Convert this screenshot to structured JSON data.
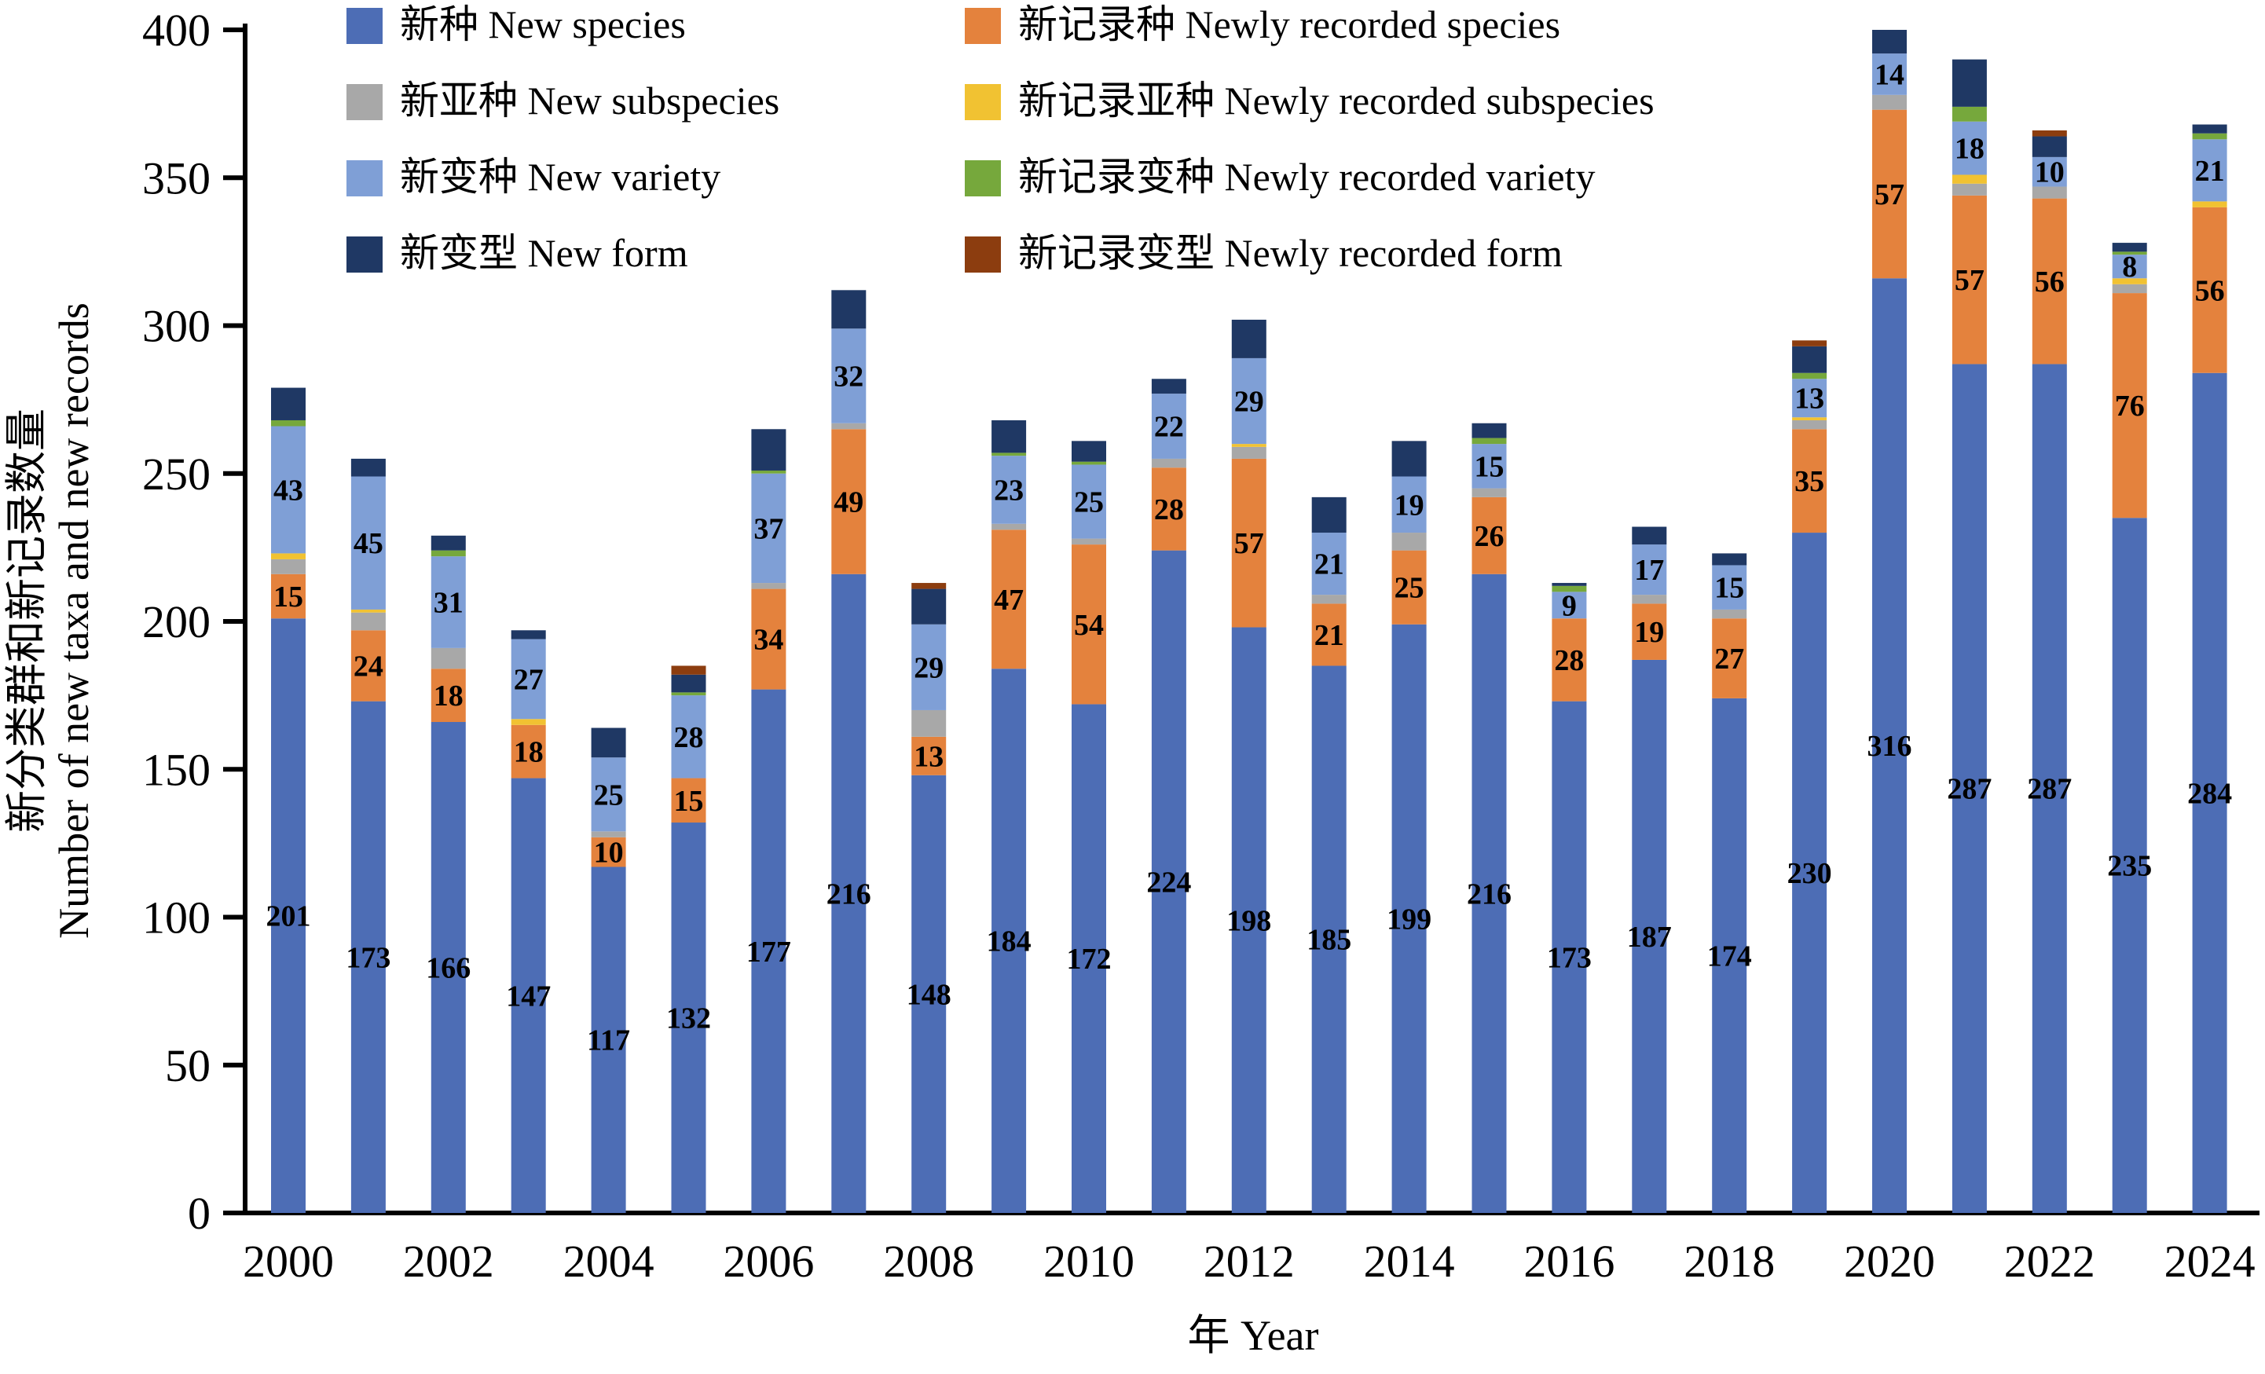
{
  "chart_data": {
    "type": "bar",
    "stacked": true,
    "title": "",
    "xlabel": "年 Year",
    "ylabel_zh": "新分类群和新记录数量",
    "ylabel_en": "Number of new taxa and new records",
    "ylim": [
      0,
      400
    ],
    "yticks": [
      0,
      50,
      100,
      150,
      200,
      250,
      300,
      350,
      400
    ],
    "grid": false,
    "legend_position": "top-left, two columns",
    "categories": [
      2000,
      2001,
      2002,
      2003,
      2004,
      2005,
      2006,
      2007,
      2008,
      2009,
      2010,
      2011,
      2012,
      2013,
      2014,
      2015,
      2016,
      2017,
      2018,
      2019,
      2020,
      2021,
      2022,
      2023,
      2024
    ],
    "x_tick_labels": [
      "2000",
      "2002",
      "2004",
      "2006",
      "2008",
      "2010",
      "2012",
      "2014",
      "2016",
      "2018",
      "2020",
      "2022",
      "2024"
    ],
    "value_label_series": [
      "new_species",
      "newly_recorded_species",
      "new_variety"
    ],
    "series": [
      {
        "key": "new_species",
        "label": "新种 New species",
        "color": "#4D6DB5",
        "values": [
          201,
          173,
          166,
          147,
          117,
          132,
          177,
          216,
          148,
          184,
          172,
          224,
          198,
          185,
          199,
          216,
          173,
          187,
          174,
          230,
          316,
          287,
          287,
          235,
          284
        ]
      },
      {
        "key": "newly_recorded_species",
        "label": "新记录种 Newly recorded species",
        "color": "#E4823D",
        "values": [
          15,
          24,
          18,
          18,
          10,
          15,
          34,
          49,
          13,
          47,
          54,
          28,
          57,
          21,
          25,
          26,
          28,
          19,
          27,
          35,
          57,
          57,
          56,
          76,
          56
        ]
      },
      {
        "key": "new_subspecies",
        "label": "新亚种 New subspecies",
        "color": "#A8A8A8",
        "values": [
          5,
          6,
          7,
          0,
          2,
          0,
          2,
          2,
          9,
          2,
          2,
          3,
          4,
          3,
          6,
          3,
          0,
          3,
          3,
          3,
          5,
          4,
          4,
          3,
          0
        ]
      },
      {
        "key": "newly_recorded_subspecies",
        "label": "新记录亚种 Newly recorded subspecies",
        "color": "#F1C232",
        "values": [
          2,
          1,
          0,
          2,
          0,
          0,
          0,
          0,
          0,
          0,
          0,
          0,
          1,
          0,
          0,
          0,
          0,
          0,
          0,
          1,
          0,
          3,
          0,
          2,
          2
        ]
      },
      {
        "key": "new_variety",
        "label": "新变种 New variety",
        "color": "#7F9FD6",
        "values": [
          43,
          45,
          31,
          27,
          25,
          28,
          37,
          32,
          29,
          23,
          25,
          22,
          29,
          21,
          19,
          15,
          9,
          17,
          15,
          13,
          14,
          18,
          10,
          8,
          21
        ]
      },
      {
        "key": "newly_recorded_variety",
        "label": "新记录变种 Newly recorded variety",
        "color": "#76A83C",
        "values": [
          2,
          0,
          2,
          0,
          0,
          1,
          1,
          0,
          0,
          1,
          1,
          0,
          0,
          0,
          0,
          2,
          2,
          0,
          0,
          2,
          0,
          5,
          0,
          1,
          2
        ]
      },
      {
        "key": "new_form",
        "label": "新变型 New form",
        "color": "#1F3864",
        "values": [
          11,
          6,
          5,
          3,
          10,
          6,
          14,
          13,
          12,
          11,
          7,
          5,
          13,
          12,
          12,
          5,
          1,
          6,
          4,
          9,
          8,
          16,
          7,
          3,
          3
        ]
      },
      {
        "key": "newly_recorded_form",
        "label": "新记录变型 Newly recorded form",
        "color": "#8C3D0F",
        "values": [
          0,
          0,
          0,
          0,
          0,
          3,
          0,
          0,
          2,
          0,
          0,
          0,
          0,
          0,
          0,
          0,
          0,
          0,
          0,
          2,
          0,
          0,
          2,
          0,
          0
        ]
      }
    ]
  }
}
